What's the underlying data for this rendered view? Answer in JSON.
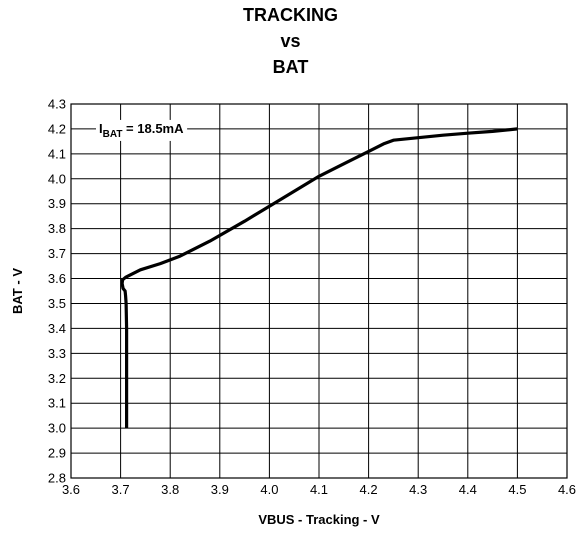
{
  "chart_data": {
    "type": "line",
    "title": [
      "TRACKING",
      "vs",
      "BAT"
    ],
    "xlabel": "VBUS - Tracking - V",
    "ylabel": "BAT - V",
    "xlim": [
      3.6,
      4.6
    ],
    "ylim": [
      2.8,
      4.3
    ],
    "xticks": [
      "3.6",
      "3.7",
      "3.8",
      "3.9",
      "4.0",
      "4.1",
      "4.2",
      "4.3",
      "4.4",
      "4.5",
      "4.6"
    ],
    "yticks": [
      "2.8",
      "2.9",
      "3.0",
      "3.1",
      "3.2",
      "3.3",
      "3.4",
      "3.5",
      "3.6",
      "3.7",
      "3.8",
      "3.9",
      "4.0",
      "4.1",
      "4.2",
      "4.3"
    ],
    "grid": true,
    "annotation": {
      "main": "I",
      "sub": "BAT",
      "rest": " = 18.5mA"
    },
    "series": [
      {
        "x": [
          3.712,
          3.712,
          3.712,
          3.711,
          3.71,
          3.709,
          3.705,
          3.703,
          3.704,
          3.71,
          3.72,
          3.74,
          3.78,
          3.82,
          3.88,
          3.95,
          4.0,
          4.05,
          4.1,
          4.15,
          4.2,
          4.23,
          4.25,
          4.3,
          4.35,
          4.4,
          4.45,
          4.5
        ],
        "y": [
          3.0,
          3.2,
          3.4,
          3.5,
          3.53,
          3.55,
          3.56,
          3.58,
          3.595,
          3.605,
          3.615,
          3.635,
          3.66,
          3.69,
          3.75,
          3.83,
          3.89,
          3.95,
          4.01,
          4.06,
          4.11,
          4.14,
          4.155,
          4.165,
          4.175,
          4.183,
          4.19,
          4.2
        ]
      }
    ]
  }
}
